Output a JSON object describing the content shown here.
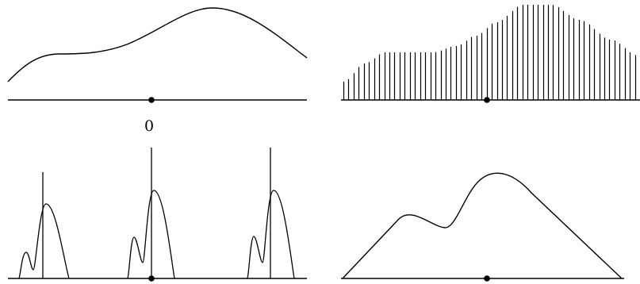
{
  "panels": {
    "top_left": {
      "origin_label": "0"
    }
  }
}
